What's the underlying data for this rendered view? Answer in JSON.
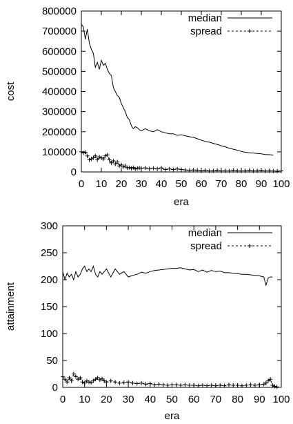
{
  "chart_data": [
    {
      "type": "line",
      "xlabel": "era",
      "ylabel": "cost",
      "xlim": [
        0,
        100
      ],
      "ylim": [
        0,
        800000
      ],
      "xticks": [
        0,
        10,
        20,
        30,
        40,
        50,
        60,
        70,
        80,
        90,
        100
      ],
      "xtick_labels": [
        "0",
        "10",
        "20",
        "30",
        "40",
        "50",
        "60",
        "70",
        "80",
        "90",
        "100"
      ],
      "yticks": [
        0,
        100000,
        200000,
        300000,
        400000,
        500000,
        600000,
        700000,
        800000
      ],
      "ytick_labels": [
        "0",
        "100000",
        "200000",
        "300000",
        "400000",
        "500000",
        "600000",
        "700000",
        "800000"
      ],
      "legend_position": "top-right",
      "series": [
        {
          "name": "median",
          "style": "solid",
          "x": [
            0,
            1,
            2,
            3,
            4,
            5,
            6,
            7,
            8,
            9,
            10,
            11,
            12,
            13,
            14,
            15,
            16,
            17,
            18,
            19,
            20,
            21,
            22,
            23,
            24,
            25,
            26,
            27,
            28,
            29,
            30,
            32,
            34,
            36,
            38,
            40,
            42,
            44,
            46,
            48,
            50,
            52,
            54,
            56,
            58,
            60,
            62,
            64,
            66,
            68,
            70,
            72,
            74,
            76,
            78,
            80,
            82,
            84,
            86,
            88,
            90,
            92,
            94,
            96
          ],
          "values": [
            735000,
            720000,
            660000,
            710000,
            640000,
            610000,
            590000,
            520000,
            545000,
            510000,
            555000,
            530000,
            540000,
            510000,
            490000,
            480000,
            420000,
            400000,
            380000,
            370000,
            340000,
            320000,
            300000,
            270000,
            260000,
            230000,
            215000,
            225000,
            220000,
            210000,
            205000,
            215000,
            205000,
            200000,
            210000,
            200000,
            195000,
            190000,
            190000,
            182000,
            185000,
            180000,
            175000,
            172000,
            165000,
            158000,
            152000,
            148000,
            142000,
            137000,
            130000,
            125000,
            118000,
            113000,
            108000,
            102000,
            98000,
            95000,
            94000,
            92000,
            90000,
            87000,
            86000,
            84000
          ]
        },
        {
          "name": "spread",
          "style": "dashed",
          "marker": "plus",
          "x": [
            0,
            1,
            2,
            3,
            4,
            5,
            6,
            7,
            8,
            9,
            10,
            11,
            12,
            13,
            14,
            15,
            16,
            17,
            18,
            19,
            20,
            21,
            22,
            23,
            24,
            25,
            26,
            27,
            28,
            29,
            30,
            32,
            34,
            36,
            38,
            40,
            42,
            44,
            46,
            48,
            50,
            52,
            54,
            56,
            58,
            60,
            62,
            64,
            66,
            68,
            70,
            72,
            74,
            76,
            78,
            80,
            82,
            84,
            86,
            88,
            90,
            92,
            94,
            96,
            98,
            100
          ],
          "values": [
            100000,
            95000,
            98000,
            80000,
            60000,
            65000,
            70000,
            80000,
            60000,
            75000,
            70000,
            65000,
            80000,
            85000,
            60000,
            45000,
            55000,
            40000,
            50000,
            30000,
            35000,
            25000,
            30000,
            20000,
            22000,
            18000,
            22000,
            15000,
            18000,
            20000,
            18000,
            20000,
            15000,
            18000,
            15000,
            20000,
            12000,
            15000,
            12000,
            15000,
            12000,
            10000,
            8000,
            10000,
            8000,
            6000,
            8000,
            5000,
            6000,
            8000,
            5000,
            6000,
            5000,
            8000,
            6000,
            5000,
            6000,
            8000,
            5000,
            6000,
            8000,
            5000,
            6000,
            5000,
            4000,
            5000
          ]
        }
      ]
    },
    {
      "type": "line",
      "xlabel": "era",
      "ylabel": "attainment",
      "xlim": [
        0,
        100
      ],
      "ylim": [
        0,
        300
      ],
      "xticks": [
        0,
        10,
        20,
        30,
        40,
        50,
        60,
        70,
        80,
        90,
        100
      ],
      "xtick_labels": [
        "0",
        "10",
        "20",
        "30",
        "40",
        "50",
        "60",
        "70",
        "80",
        "90",
        "100"
      ],
      "yticks": [
        0,
        50,
        100,
        150,
        200,
        250,
        300
      ],
      "ytick_labels": [
        "0",
        "50",
        "100",
        "150",
        "200",
        "250",
        "300"
      ],
      "legend_position": "top-right",
      "series": [
        {
          "name": "median",
          "style": "solid",
          "x": [
            0,
            1,
            2,
            3,
            4,
            5,
            6,
            7,
            8,
            9,
            10,
            11,
            12,
            13,
            14,
            15,
            16,
            17,
            18,
            19,
            20,
            22,
            24,
            26,
            28,
            30,
            32,
            34,
            36,
            38,
            40,
            42,
            44,
            46,
            48,
            50,
            52,
            54,
            56,
            58,
            60,
            62,
            64,
            66,
            68,
            70,
            72,
            74,
            76,
            78,
            80,
            82,
            84,
            86,
            88,
            90,
            92,
            93,
            94,
            95,
            96
          ],
          "values": [
            215,
            200,
            212,
            205,
            210,
            200,
            215,
            205,
            210,
            220,
            225,
            215,
            220,
            215,
            225,
            210,
            205,
            215,
            210,
            215,
            220,
            205,
            220,
            210,
            215,
            205,
            208,
            210,
            214,
            212,
            215,
            217,
            218,
            219,
            220,
            221,
            221,
            222,
            220,
            218,
            219,
            215,
            218,
            214,
            217,
            215,
            216,
            213,
            213,
            212,
            211,
            210,
            210,
            209,
            208,
            207,
            205,
            190,
            203,
            205,
            205
          ]
        },
        {
          "name": "spread",
          "style": "dashed",
          "marker": "plus",
          "x": [
            0,
            1,
            2,
            3,
            4,
            5,
            6,
            7,
            8,
            9,
            10,
            11,
            12,
            13,
            14,
            15,
            16,
            17,
            18,
            19,
            20,
            22,
            24,
            26,
            28,
            30,
            32,
            34,
            36,
            38,
            40,
            42,
            44,
            46,
            48,
            50,
            52,
            54,
            56,
            58,
            60,
            62,
            64,
            66,
            68,
            70,
            72,
            74,
            76,
            78,
            80,
            82,
            84,
            86,
            88,
            90,
            92,
            93,
            94,
            95,
            96,
            97,
            98
          ],
          "values": [
            20,
            15,
            10,
            18,
            12,
            25,
            20,
            15,
            18,
            10,
            8,
            12,
            10,
            9,
            12,
            15,
            18,
            14,
            16,
            12,
            10,
            12,
            10,
            8,
            9,
            10,
            8,
            7,
            8,
            6,
            7,
            5,
            6,
            5,
            4,
            5,
            5,
            4,
            5,
            4,
            4,
            3,
            4,
            3,
            4,
            3,
            4,
            3,
            5,
            4,
            4,
            3,
            4,
            5,
            4,
            5,
            6,
            8,
            12,
            15,
            4,
            2,
            1
          ]
        }
      ]
    }
  ]
}
